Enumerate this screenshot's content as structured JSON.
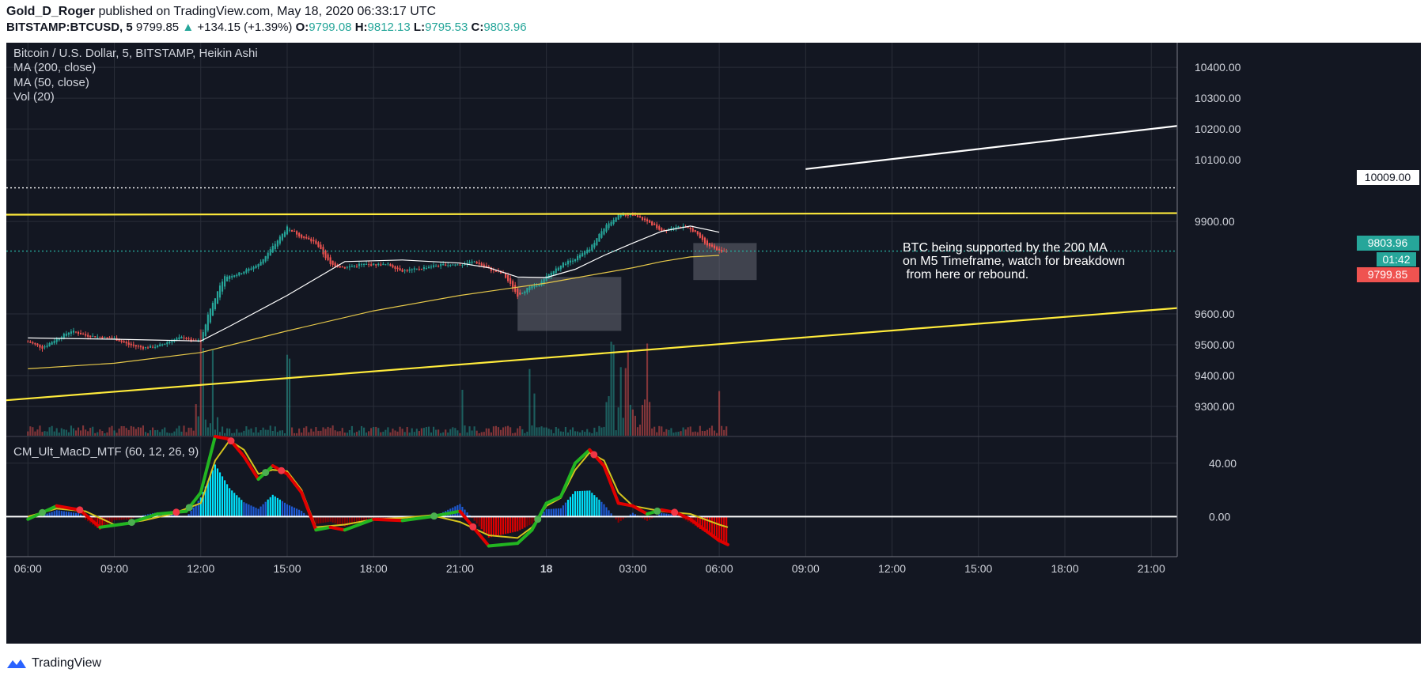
{
  "header": {
    "publisher": "Gold_D_Roger",
    "published_text": "published on TradingView.com, May 18, 2020 06:33:17 UTC",
    "symbol": "BITSTAMP:BTCUSD, 5",
    "last": "9799.85",
    "change_arrow": "▲",
    "change": "+134.15 (+1.39%)",
    "o_label": "O:",
    "o": "9799.08",
    "h_label": "H:",
    "h": "9812.13",
    "l_label": "L:",
    "l": "9795.53",
    "c_label": "C:",
    "c": "9803.96"
  },
  "legend": {
    "title": "Bitcoin / U.S. Dollar, 5, BITSTAMP, Heikin Ashi",
    "ma200": "MA (200, close)",
    "ma50": "MA (50, close)",
    "vol": "Vol (20)",
    "macd": "CM_Ult_MacD_MTF (60, 12, 26, 9)"
  },
  "annotation": {
    "line1": "BTC being supported by the 200 MA",
    "line2": "on M5 Timeframe, watch for breakdown",
    "line3": " from here or rebound."
  },
  "price_tags": {
    "dotted": "10009.00",
    "current": "9803.96",
    "countdown": "01:42",
    "close": "9799.85"
  },
  "colors": {
    "background": "#131722",
    "grid": "#2a2e39",
    "up": "#26a69a",
    "down": "#ef5350",
    "ma200": "#e6c84a",
    "ma50": "#ffffff",
    "trend": "#ffeb3b",
    "macd_green": "#22b521",
    "macd_red": "#e00000"
  },
  "footer": {
    "brand": "TradingView"
  },
  "chart_data": [
    {
      "type": "candlestick",
      "title": "Bitcoin / U.S. Dollar, 5, BITSTAMP, Heikin Ashi",
      "x_tick_labels": [
        "06:00",
        "09:00",
        "12:00",
        "15:00",
        "18:00",
        "21:00",
        "18",
        "03:00",
        "06:00",
        "09:00",
        "12:00",
        "15:00",
        "18:00",
        "21:00"
      ],
      "x_range_hours": [
        -0.75,
        39.9
      ],
      "y_tick_labels": [
        "10400.00",
        "10300.00",
        "10200.00",
        "10100.00",
        "9900.00",
        "9600.00",
        "9500.00",
        "9400.00",
        "9300.00"
      ],
      "y_ticks": [
        10400,
        10300,
        10200,
        10100,
        9900,
        9600,
        9500,
        9400,
        9300
      ],
      "ylim": [
        9205,
        10480
      ],
      "price_path": {
        "t": [
          0,
          0.5,
          1,
          1.5,
          2,
          2.5,
          3,
          3.5,
          4,
          4.5,
          5,
          5.4,
          5.7,
          6,
          6.3,
          6.8,
          7.3,
          8,
          8.6,
          9,
          9.5,
          10,
          10.5,
          11,
          11.5,
          12,
          12.5,
          13,
          13.5,
          14,
          14.5,
          15,
          15.5,
          16,
          16.5,
          17,
          17.3,
          17.8,
          18,
          18.5,
          19,
          19.5,
          20,
          20.5,
          21,
          21.5,
          22,
          22.5,
          22.8,
          23.1,
          23.5,
          24
        ],
        "close": [
          9510,
          9490,
          9520,
          9545,
          9530,
          9525,
          9520,
          9500,
          9490,
          9495,
          9515,
          9525,
          9510,
          9515,
          9610,
          9720,
          9730,
          9760,
          9830,
          9880,
          9850,
          9830,
          9760,
          9750,
          9760,
          9760,
          9760,
          9740,
          9745,
          9755,
          9760,
          9760,
          9770,
          9745,
          9730,
          9660,
          9680,
          9700,
          9720,
          9760,
          9780,
          9810,
          9880,
          9920,
          9920,
          9900,
          9870,
          9885,
          9880,
          9870,
          9830,
          9805
        ]
      },
      "volume_bars": "per-candle volume shown in lower overlay, spikes near 12:00, 15:00, 22:00, 02:00, 06:00",
      "moving_averages": {
        "ma50": {
          "t": [
            0,
            3,
            6,
            7,
            9,
            11,
            13,
            15,
            16,
            17,
            18,
            19,
            20,
            21,
            22,
            23,
            24
          ],
          "v": [
            9522,
            9518,
            9512,
            9560,
            9660,
            9770,
            9775,
            9765,
            9750,
            9720,
            9718,
            9745,
            9790,
            9830,
            9868,
            9885,
            9865
          ]
        },
        "ma200": {
          "t": [
            0,
            3,
            6,
            9,
            12,
            15,
            18,
            21,
            22,
            23,
            24
          ],
          "v": [
            9422,
            9440,
            9475,
            9545,
            9610,
            9660,
            9700,
            9750,
            9770,
            9785,
            9790
          ]
        }
      },
      "horizontal_lines": [
        {
          "price": 10009,
          "style": "dotted",
          "color": "#ffffff"
        },
        {
          "price": 9803.96,
          "style": "dotted",
          "color": "#26a69a"
        }
      ],
      "trend_lines": [
        {
          "name": "resistance",
          "from": [
            -0.75,
            9922
          ],
          "to": [
            39.9,
            9927
          ],
          "color": "#ffeb3b"
        },
        {
          "name": "rising support",
          "from": [
            -0.75,
            9320
          ],
          "to": [
            39.9,
            9619
          ],
          "color": "#ffeb3b"
        },
        {
          "name": "projection",
          "from": [
            27.0,
            10070
          ],
          "to": [
            39.9,
            10210
          ],
          "color": "#ffffff"
        }
      ],
      "highlight_boxes": [
        {
          "t_from": 17.0,
          "t_to": 20.6,
          "p_from": 9545,
          "p_to": 9720
        },
        {
          "t_from": 23.1,
          "t_to": 25.3,
          "p_from": 9710,
          "p_to": 9830
        }
      ]
    },
    {
      "type": "histogram+line",
      "title": "CM_Ult_MacD_MTF (60, 12, 26, 9)",
      "y_tick_labels": [
        "40.00",
        "0.00"
      ],
      "y_ticks": [
        40,
        0
      ],
      "ylim": [
        -30,
        60
      ],
      "macd": {
        "t": [
          0,
          1,
          1.8,
          2.5,
          3.5,
          4.5,
          5.5,
          6,
          6.5,
          7,
          7.5,
          8,
          8.5,
          9,
          9.5,
          10,
          10.5,
          11,
          12,
          13,
          14,
          15,
          16,
          17,
          17.5,
          18,
          18.5,
          19,
          19.5,
          20,
          20.5,
          21,
          21.5,
          22,
          22.5,
          23,
          23.5,
          24,
          24.3
        ],
        "v": [
          -2,
          8,
          5,
          -8,
          -5,
          2,
          4,
          18,
          60,
          58,
          45,
          28,
          38,
          32,
          18,
          -10,
          -8,
          -10,
          -2,
          -3,
          0,
          4,
          -22,
          -20,
          -10,
          10,
          15,
          40,
          50,
          38,
          10,
          8,
          2,
          5,
          3,
          -2,
          -10,
          -18,
          -21
        ]
      },
      "signal": {
        "t": [
          0,
          1,
          2,
          3,
          4,
          5,
          6,
          6.5,
          7,
          7.5,
          8,
          8.5,
          9,
          9.5,
          10,
          11,
          12,
          13,
          14,
          15,
          16,
          17,
          17.5,
          18,
          18.5,
          19,
          19.5,
          20,
          20.5,
          21,
          22,
          23,
          24,
          24.3
        ],
        "v": [
          0,
          6,
          4,
          -6,
          -3,
          2,
          10,
          42,
          57,
          50,
          32,
          35,
          34,
          20,
          -8,
          -6,
          -2,
          -1,
          1,
          -4,
          -14,
          -16,
          -8,
          8,
          14,
          35,
          48,
          42,
          18,
          8,
          4,
          2,
          -6,
          -8
        ]
      },
      "zero_line": 0
    }
  ]
}
